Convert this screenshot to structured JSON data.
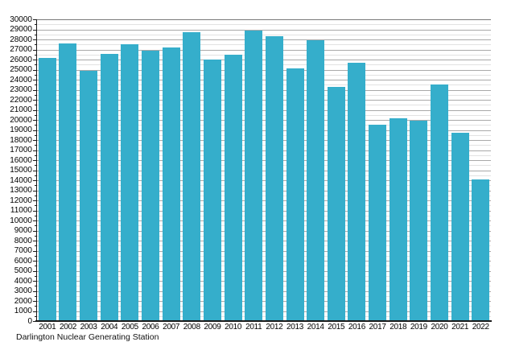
{
  "figure": {
    "caption": "Darlington Nuclear Generating Station"
  },
  "chart_data": {
    "type": "bar",
    "title": "",
    "xlabel": "",
    "ylabel": "",
    "categories": [
      "2001",
      "2002",
      "2003",
      "2004",
      "2005",
      "2006",
      "2007",
      "2008",
      "2009",
      "2010",
      "2011",
      "2012",
      "2013",
      "2014",
      "2015",
      "2016",
      "2017",
      "2018",
      "2019",
      "2020",
      "2021",
      "2022"
    ],
    "values": [
      26200,
      27600,
      24900,
      26600,
      27500,
      26900,
      27200,
      28700,
      26000,
      26500,
      28900,
      28300,
      25100,
      27900,
      23300,
      25700,
      19500,
      20200,
      19900,
      23500,
      18700,
      14100
    ],
    "ylim": [
      0,
      30000
    ],
    "y_tick_step": 1000,
    "y_minor_step": 500,
    "grid": true,
    "legend": "none",
    "bar_color": "#35AECB",
    "axis_color": "#1a1a1a",
    "major_grid_color": "#a9a9a9",
    "minor_grid_color": "#e2e2e2",
    "top_line_color": "#777777"
  }
}
